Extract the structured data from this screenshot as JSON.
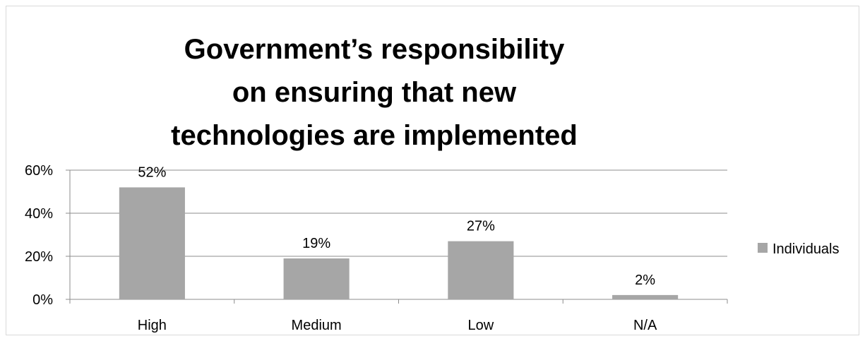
{
  "chart_data": {
    "type": "bar",
    "title_lines": [
      "Government’s responsibility",
      "on ensuring that new",
      "technologies are implemented"
    ],
    "categories": [
      "High",
      "Medium",
      "Low",
      "N/A"
    ],
    "series": [
      {
        "name": "Individuals",
        "values": [
          52,
          19,
          27,
          2
        ],
        "labels": [
          "52%",
          "19%",
          "27%",
          "2%"
        ],
        "color": "#a6a6a6"
      }
    ],
    "ylim": [
      0,
      60
    ],
    "yticks": [
      0,
      20,
      40,
      60
    ],
    "ytick_labels": [
      "0%",
      "20%",
      "40%",
      "60%"
    ],
    "grid": true,
    "legend_position": "right"
  }
}
